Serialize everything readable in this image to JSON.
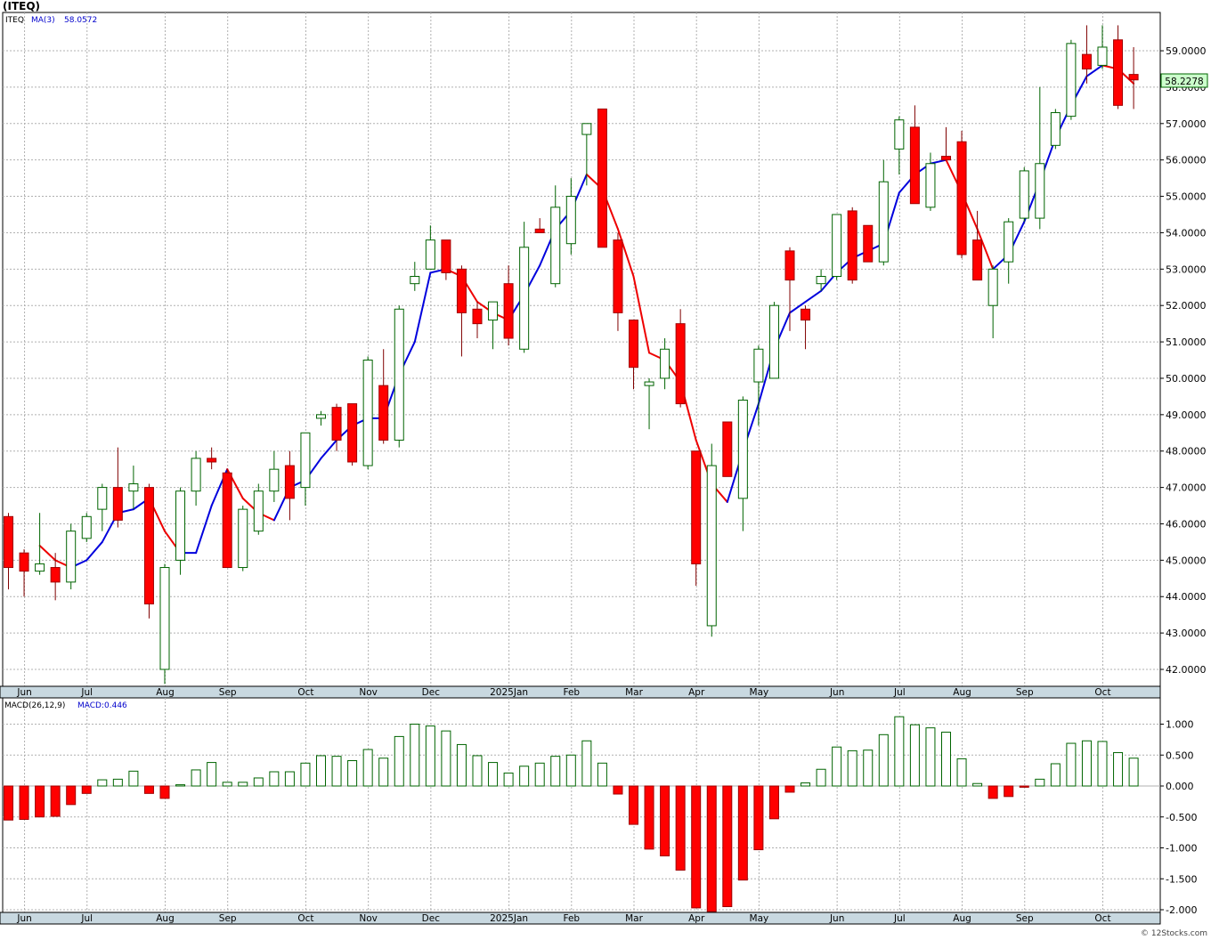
{
  "header": {
    "symbol_title": "(ITEQ)"
  },
  "price_panel": {
    "ticker": "ITEQ",
    "ma_label": "MA(3)",
    "ma_value": "58.0572",
    "last_price": "58.2278",
    "y_ticks": [
      "42.0000",
      "43.0000",
      "44.0000",
      "45.0000",
      "46.0000",
      "47.0000",
      "48.0000",
      "49.0000",
      "50.0000",
      "51.0000",
      "52.0000",
      "53.0000",
      "54.0000",
      "55.0000",
      "56.0000",
      "57.0000",
      "58.0000",
      "59.0000"
    ]
  },
  "macd_panel": {
    "label": "MACD(26,12,9)",
    "value_label": "MACD:0.446",
    "y_ticks": [
      "1.000",
      "0.500",
      "0.000",
      "-0.500",
      "-1.000",
      "-1.500",
      "-2.000"
    ]
  },
  "x_axis_labels": [
    "Jun",
    "Jul",
    "Aug",
    "Sep",
    "Oct",
    "Nov",
    "Dec",
    "2025Jan",
    "Feb",
    "Mar",
    "Apr",
    "May",
    "Jun",
    "Jul",
    "Aug",
    "Sep",
    "Oct"
  ],
  "footer": {
    "watermark": "© 12Stocks.com"
  },
  "colors": {
    "up": "#006400",
    "down": "#ff0000",
    "ma_up": "#0000dd",
    "ma_down": "#ee0000",
    "last_price_bg": "#ccffcc",
    "axis_band": "#c8d8e0"
  },
  "chart_data": {
    "type": "candlestick",
    "title": "(ITEQ)",
    "interval": "weekly",
    "x_label_weeks": [
      1,
      5,
      10,
      14,
      19,
      23,
      27,
      32,
      36,
      40,
      44,
      48,
      53,
      57,
      61,
      65,
      70
    ],
    "ohlc": [
      [
        46.2,
        46.3,
        44.2,
        44.8
      ],
      [
        45.2,
        45.3,
        44.0,
        44.7
      ],
      [
        44.7,
        46.3,
        44.6,
        44.9
      ],
      [
        44.8,
        45.2,
        43.9,
        44.4
      ],
      [
        44.4,
        46.0,
        44.2,
        45.8
      ],
      [
        45.6,
        46.3,
        45.5,
        46.2
      ],
      [
        46.4,
        47.1,
        45.8,
        47.0
      ],
      [
        47.0,
        48.1,
        45.9,
        46.1
      ],
      [
        46.9,
        47.6,
        46.4,
        47.1
      ],
      [
        47.0,
        47.1,
        43.4,
        43.8
      ],
      [
        42.0,
        44.9,
        41.6,
        44.8
      ],
      [
        45.0,
        47.0,
        44.6,
        46.9
      ],
      [
        46.9,
        48.0,
        46.5,
        47.8
      ],
      [
        47.8,
        48.1,
        47.5,
        47.7
      ],
      [
        47.4,
        47.5,
        44.8,
        44.8
      ],
      [
        44.8,
        46.5,
        44.7,
        46.4
      ],
      [
        45.8,
        47.1,
        45.7,
        46.9
      ],
      [
        46.9,
        48.0,
        46.6,
        47.5
      ],
      [
        47.6,
        48.0,
        46.1,
        46.7
      ],
      [
        47.0,
        48.5,
        46.5,
        48.5
      ],
      [
        48.9,
        49.1,
        48.7,
        49.0
      ],
      [
        49.2,
        49.3,
        48.0,
        48.3
      ],
      [
        49.3,
        49.3,
        47.6,
        47.7
      ],
      [
        47.6,
        50.6,
        47.5,
        50.5
      ],
      [
        49.8,
        50.8,
        48.2,
        48.3
      ],
      [
        48.3,
        52.0,
        48.1,
        51.9
      ],
      [
        52.6,
        53.2,
        52.4,
        52.8
      ],
      [
        53.0,
        54.2,
        53.0,
        53.8
      ],
      [
        53.8,
        53.8,
        52.7,
        52.9
      ],
      [
        53.0,
        53.1,
        50.6,
        51.8
      ],
      [
        51.9,
        52.1,
        51.1,
        51.5
      ],
      [
        51.6,
        52.1,
        50.8,
        52.1
      ],
      [
        52.6,
        53.1,
        50.9,
        51.1
      ],
      [
        50.8,
        54.3,
        50.7,
        53.6
      ],
      [
        54.1,
        54.4,
        54.0,
        54.0
      ],
      [
        52.6,
        55.3,
        52.5,
        54.7
      ],
      [
        53.7,
        55.5,
        53.4,
        55.0
      ],
      [
        56.7,
        57.0,
        55.3,
        57.0
      ],
      [
        57.4,
        57.4,
        53.6,
        53.6
      ],
      [
        53.8,
        54.0,
        51.3,
        51.8
      ],
      [
        51.6,
        51.6,
        49.7,
        50.3
      ],
      [
        49.8,
        50.0,
        48.6,
        49.9
      ],
      [
        50.0,
        51.1,
        49.7,
        50.8
      ],
      [
        51.5,
        51.9,
        49.2,
        49.3
      ],
      [
        48.0,
        48.0,
        44.3,
        44.9
      ],
      [
        43.2,
        48.2,
        42.9,
        47.6
      ],
      [
        48.8,
        48.8,
        47.3,
        47.3
      ],
      [
        46.7,
        49.5,
        45.8,
        49.4
      ],
      [
        49.9,
        50.9,
        48.7,
        50.8
      ],
      [
        50.0,
        52.1,
        50.0,
        52.0
      ],
      [
        53.5,
        53.6,
        51.3,
        52.7
      ],
      [
        51.9,
        52.0,
        50.8,
        51.6
      ],
      [
        52.6,
        53.0,
        52.4,
        52.8
      ],
      [
        52.8,
        54.5,
        52.7,
        54.5
      ],
      [
        54.6,
        54.7,
        52.6,
        52.7
      ],
      [
        54.2,
        54.2,
        53.2,
        53.2
      ],
      [
        53.2,
        56.0,
        53.1,
        55.4
      ],
      [
        56.3,
        57.2,
        55.6,
        57.1
      ],
      [
        56.9,
        57.5,
        54.8,
        54.8
      ],
      [
        54.7,
        56.2,
        54.6,
        55.9
      ],
      [
        56.1,
        56.9,
        56.0,
        56.0
      ],
      [
        56.5,
        56.8,
        53.3,
        53.4
      ],
      [
        53.8,
        54.6,
        52.7,
        52.7
      ],
      [
        52.0,
        53.1,
        51.1,
        53.0
      ],
      [
        53.2,
        54.4,
        52.6,
        54.3
      ],
      [
        54.4,
        55.8,
        54.3,
        55.7
      ],
      [
        54.4,
        58.0,
        54.1,
        55.9
      ],
      [
        56.4,
        57.4,
        56.3,
        57.3
      ],
      [
        57.2,
        59.3,
        57.1,
        59.2
      ],
      [
        58.9,
        59.7,
        58.1,
        58.5
      ],
      [
        58.6,
        59.7,
        58.5,
        59.1
      ],
      [
        59.3,
        59.7,
        57.4,
        57.5
      ],
      [
        58.35,
        59.1,
        57.4,
        58.2
      ]
    ],
    "ma3_values": [
      null,
      null,
      45.4,
      45.0,
      44.8,
      45.0,
      45.5,
      46.3,
      46.4,
      46.7,
      45.8,
      45.2,
      45.2,
      46.5,
      47.5,
      46.7,
      46.3,
      46.1,
      47.0,
      47.2,
      47.8,
      48.3,
      48.7,
      48.9,
      48.9,
      50.1,
      51.0,
      52.9,
      53.0,
      52.8,
      52.1,
      51.8,
      51.6,
      52.3,
      53.1,
      54.1,
      54.6,
      55.6,
      55.2,
      54.1,
      52.8,
      50.7,
      50.5,
      49.9,
      48.3,
      47.1,
      46.6,
      48.0,
      49.3,
      50.8,
      51.8,
      52.1,
      52.4,
      52.9,
      53.3,
      53.5,
      53.7,
      55.1,
      55.6,
      55.9,
      56.0,
      55.1,
      54.1,
      53.0,
      53.4,
      54.3,
      55.4,
      56.6,
      57.5,
      58.3,
      58.6,
      58.5,
      58.1
    ],
    "macd_values": [
      -0.55,
      -0.54,
      -0.5,
      -0.49,
      -0.3,
      -0.12,
      0.1,
      0.11,
      0.24,
      -0.12,
      -0.2,
      0.02,
      0.26,
      0.38,
      0.06,
      0.06,
      0.13,
      0.23,
      0.23,
      0.37,
      0.49,
      0.48,
      0.41,
      0.59,
      0.45,
      0.8,
      1.0,
      0.97,
      0.89,
      0.67,
      0.49,
      0.38,
      0.21,
      0.32,
      0.37,
      0.48,
      0.5,
      0.73,
      0.37,
      -0.13,
      -0.62,
      -1.02,
      -1.13,
      -1.36,
      -1.97,
      -2.03,
      -1.95,
      -1.52,
      -1.03,
      -0.53,
      -0.1,
      0.05,
      0.27,
      0.63,
      0.57,
      0.58,
      0.83,
      1.12,
      0.99,
      0.94,
      0.87,
      0.44,
      0.04,
      -0.2,
      -0.17,
      -0.02,
      0.11,
      0.36,
      0.69,
      0.73,
      0.72,
      0.54,
      0.45
    ],
    "price_ylim": [
      41.6,
      59.9
    ],
    "macd_ylim": [
      -2.05,
      1.28
    ],
    "grid": true
  }
}
